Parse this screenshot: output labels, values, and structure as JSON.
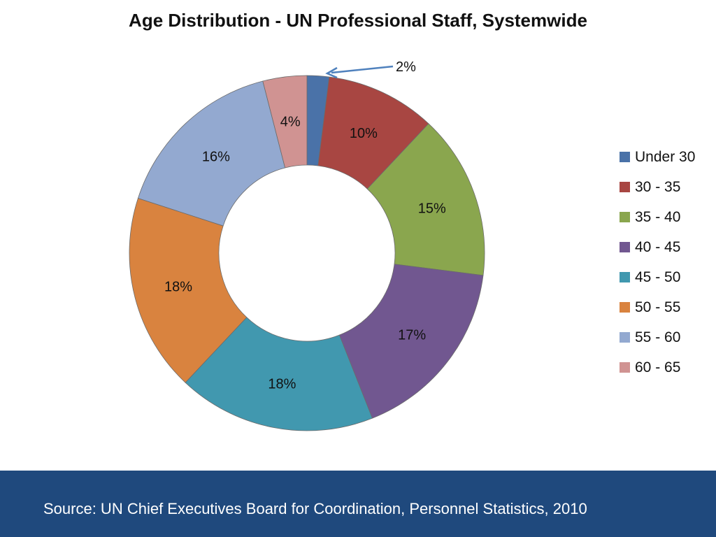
{
  "title": "Age Distribution - UN Professional Staff, Systemwide",
  "footer": {
    "source": "Source: UN Chief Executives Board for Coordination, Personnel Statistics, 2010",
    "color": "#1f497d"
  },
  "chart_data": {
    "type": "pie",
    "variant": "donut",
    "title": "Age Distribution - UN Professional Staff, Systemwide",
    "legend_position": "right",
    "categories": [
      "Under 30",
      "30 - 35",
      "35 - 40",
      "40 - 45",
      "45 - 50",
      "50 - 55",
      "55 - 60",
      "60 - 65"
    ],
    "values": [
      2,
      10,
      15,
      17,
      18,
      18,
      16,
      4
    ],
    "labels": [
      "2%",
      "10%",
      "15%",
      "17%",
      "18%",
      "18%",
      "16%",
      "4%"
    ],
    "colors": [
      "#4a72a8",
      "#a84642",
      "#8aa64e",
      "#715790",
      "#4198af",
      "#d9833f",
      "#93a9d0",
      "#d09392"
    ],
    "callout_color": "#4f81bd"
  }
}
